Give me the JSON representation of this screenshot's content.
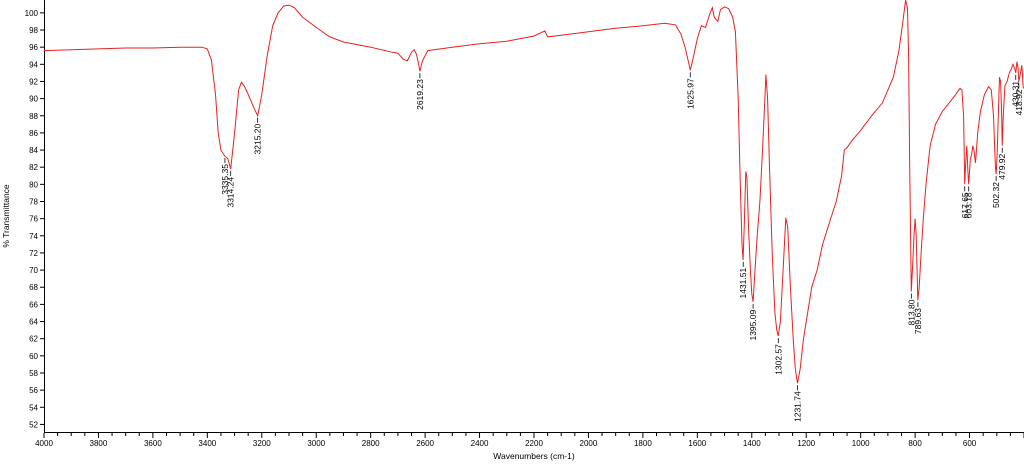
{
  "chart_data": {
    "type": "line",
    "title": "",
    "xlabel": "Wavenumbers (cm-1)",
    "ylabel": "% Transmittance",
    "xlim": [
      4000,
      400
    ],
    "ylim": [
      51,
      101.5
    ],
    "x_reversed": true,
    "grid": false,
    "line_color": "#e8211f",
    "x_ticks": [
      "4000",
      "3800",
      "3600",
      "3400",
      "3200",
      "3000",
      "2800",
      "2600",
      "2400",
      "2200",
      "2000",
      "1800",
      "1600",
      "1400",
      "1200",
      "1000",
      "800",
      "600"
    ],
    "y_ticks": [
      "52",
      "54",
      "56",
      "58",
      "60",
      "62",
      "64",
      "66",
      "68",
      "70",
      "72",
      "74",
      "76",
      "78",
      "80",
      "82",
      "84",
      "86",
      "88",
      "90",
      "92",
      "94",
      "96",
      "98",
      "100"
    ],
    "series": [
      {
        "points": [
          [
            4000,
            95.6
          ],
          [
            3900,
            95.7
          ],
          [
            3800,
            95.8
          ],
          [
            3700,
            95.9
          ],
          [
            3600,
            95.9
          ],
          [
            3500,
            96.0
          ],
          [
            3420,
            96.0
          ],
          [
            3400,
            95.8
          ],
          [
            3385,
            94.5
          ],
          [
            3370,
            90.5
          ],
          [
            3360,
            86.0
          ],
          [
            3350,
            84.0
          ],
          [
            3336,
            83.3
          ],
          [
            3325,
            83.0
          ],
          [
            3314,
            81.8
          ],
          [
            3300,
            86.0
          ],
          [
            3285,
            91.0
          ],
          [
            3275,
            91.9
          ],
          [
            3265,
            91.5
          ],
          [
            3250,
            90.5
          ],
          [
            3230,
            89.0
          ],
          [
            3215,
            88.0
          ],
          [
            3200,
            90.5
          ],
          [
            3180,
            95.0
          ],
          [
            3160,
            98.5
          ],
          [
            3140,
            100.0
          ],
          [
            3120,
            100.8
          ],
          [
            3100,
            100.9
          ],
          [
            3080,
            100.6
          ],
          [
            3050,
            99.5
          ],
          [
            3000,
            98.3
          ],
          [
            2950,
            97.2
          ],
          [
            2900,
            96.6
          ],
          [
            2800,
            96.0
          ],
          [
            2720,
            95.4
          ],
          [
            2700,
            95.3
          ],
          [
            2680,
            94.6
          ],
          [
            2665,
            94.4
          ],
          [
            2650,
            95.4
          ],
          [
            2640,
            95.7
          ],
          [
            2632,
            95.2
          ],
          [
            2625,
            94.2
          ],
          [
            2619,
            93.2
          ],
          [
            2610,
            94.4
          ],
          [
            2590,
            95.6
          ],
          [
            2500,
            96.0
          ],
          [
            2400,
            96.4
          ],
          [
            2300,
            96.7
          ],
          [
            2250,
            97.0
          ],
          [
            2200,
            97.3
          ],
          [
            2180,
            97.6
          ],
          [
            2160,
            97.9
          ],
          [
            2150,
            97.2
          ],
          [
            2100,
            97.4
          ],
          [
            2000,
            97.8
          ],
          [
            1900,
            98.2
          ],
          [
            1800,
            98.5
          ],
          [
            1720,
            98.8
          ],
          [
            1680,
            98.6
          ],
          [
            1660,
            97.5
          ],
          [
            1645,
            96.0
          ],
          [
            1632,
            94.2
          ],
          [
            1626,
            93.3
          ],
          [
            1615,
            94.8
          ],
          [
            1600,
            97.0
          ],
          [
            1585,
            98.5
          ],
          [
            1570,
            98.3
          ],
          [
            1555,
            99.8
          ],
          [
            1545,
            100.6
          ],
          [
            1538,
            99.5
          ],
          [
            1525,
            99.0
          ],
          [
            1515,
            100.4
          ],
          [
            1500,
            100.7
          ],
          [
            1485,
            100.5
          ],
          [
            1470,
            99.5
          ],
          [
            1460,
            97.8
          ],
          [
            1450,
            90.0
          ],
          [
            1442,
            80.0
          ],
          [
            1436,
            73.0
          ],
          [
            1432,
            71.2
          ],
          [
            1428,
            75.0
          ],
          [
            1422,
            81.5
          ],
          [
            1418,
            80.8
          ],
          [
            1412,
            75.0
          ],
          [
            1405,
            70.0
          ],
          [
            1400,
            67.2
          ],
          [
            1395,
            66.3
          ],
          [
            1388,
            70.0
          ],
          [
            1380,
            74.0
          ],
          [
            1370,
            78.0
          ],
          [
            1362,
            83.0
          ],
          [
            1354,
            88.5
          ],
          [
            1348,
            92.8
          ],
          [
            1342,
            90.0
          ],
          [
            1335,
            82.0
          ],
          [
            1325,
            72.0
          ],
          [
            1315,
            65.0
          ],
          [
            1308,
            63.0
          ],
          [
            1303,
            62.3
          ],
          [
            1295,
            64.0
          ],
          [
            1285,
            70.0
          ],
          [
            1275,
            76.1
          ],
          [
            1268,
            75.0
          ],
          [
            1258,
            68.0
          ],
          [
            1248,
            62.0
          ],
          [
            1240,
            58.5
          ],
          [
            1232,
            56.8
          ],
          [
            1222,
            58.5
          ],
          [
            1210,
            62.0
          ],
          [
            1195,
            65.0
          ],
          [
            1180,
            68.0
          ],
          [
            1160,
            70.0
          ],
          [
            1140,
            73.0
          ],
          [
            1110,
            76.0
          ],
          [
            1090,
            78.0
          ],
          [
            1070,
            81.0
          ],
          [
            1060,
            84.0
          ],
          [
            1050,
            84.3
          ],
          [
            1030,
            85.2
          ],
          [
            1000,
            86.3
          ],
          [
            960,
            88.0
          ],
          [
            920,
            89.5
          ],
          [
            880,
            92.5
          ],
          [
            860,
            95.5
          ],
          [
            845,
            99.0
          ],
          [
            835,
            101.5
          ],
          [
            828,
            100.5
          ],
          [
            824,
            95.0
          ],
          [
            820,
            82.0
          ],
          [
            816,
            72.0
          ],
          [
            814,
            67.5
          ],
          [
            810,
            70.0
          ],
          [
            804,
            74.0
          ],
          [
            800,
            76.0
          ],
          [
            796,
            74.0
          ],
          [
            790,
            66.5
          ],
          [
            785,
            68.0
          ],
          [
            778,
            72.0
          ],
          [
            770,
            76.0
          ],
          [
            760,
            80.0
          ],
          [
            745,
            84.5
          ],
          [
            725,
            87.0
          ],
          [
            700,
            88.5
          ],
          [
            675,
            89.5
          ],
          [
            650,
            90.5
          ],
          [
            635,
            91.2
          ],
          [
            628,
            91.0
          ],
          [
            622,
            88.0
          ],
          [
            618,
            80.0
          ],
          [
            614,
            82.5
          ],
          [
            610,
            84.5
          ],
          [
            606,
            81.5
          ],
          [
            603,
            80.0
          ],
          [
            597,
            83.0
          ],
          [
            592,
            83.5
          ],
          [
            588,
            84.5
          ],
          [
            584,
            84.0
          ],
          [
            578,
            82.5
          ],
          [
            570,
            86.0
          ],
          [
            560,
            88.5
          ],
          [
            545,
            90.5
          ],
          [
            530,
            91.4
          ],
          [
            520,
            91.0
          ],
          [
            512,
            88.0
          ],
          [
            505,
            82.0
          ],
          [
            502,
            81.2
          ],
          [
            498,
            84.0
          ],
          [
            494,
            88.5
          ],
          [
            490,
            92.5
          ],
          [
            486,
            92.0
          ],
          [
            482,
            88.0
          ],
          [
            480,
            84.5
          ],
          [
            476,
            88.0
          ],
          [
            470,
            91.5
          ],
          [
            462,
            92.0
          ],
          [
            454,
            93.0
          ],
          [
            446,
            93.5
          ],
          [
            440,
            94.0
          ],
          [
            434,
            93.5
          ],
          [
            430,
            93.0
          ],
          [
            426,
            94.3
          ],
          [
            422,
            93.7
          ],
          [
            419,
            92.0
          ],
          [
            414,
            92.8
          ],
          [
            408,
            93.9
          ],
          [
            403,
            91.3
          ],
          [
            400,
            91.2
          ]
        ]
      }
    ],
    "peak_labels": [
      {
        "text": "3335.35",
        "x": 3335.35,
        "y": 83.3
      },
      {
        "text": "3314.24",
        "x": 3314.24,
        "y": 81.8
      },
      {
        "text": "3215.20",
        "x": 3215.2,
        "y": 88.0
      },
      {
        "text": "2619.23",
        "x": 2619.23,
        "y": 93.2
      },
      {
        "text": "1625.97",
        "x": 1625.97,
        "y": 93.3
      },
      {
        "text": "1431.51",
        "x": 1431.51,
        "y": 71.2
      },
      {
        "text": "1395.09",
        "x": 1395.09,
        "y": 66.3
      },
      {
        "text": "1302.57",
        "x": 1302.57,
        "y": 62.3
      },
      {
        "text": "1231.74",
        "x": 1231.74,
        "y": 56.8
      },
      {
        "text": "813.80",
        "x": 813.8,
        "y": 67.5
      },
      {
        "text": "789.63",
        "x": 789.63,
        "y": 66.5
      },
      {
        "text": "617.65",
        "x": 617.65,
        "y": 80.0
      },
      {
        "text": "603.18",
        "x": 603.18,
        "y": 80.0
      },
      {
        "text": "502.32",
        "x": 502.32,
        "y": 81.2
      },
      {
        "text": "479.92",
        "x": 479.92,
        "y": 84.5
      },
      {
        "text": "430.31",
        "x": 430.31,
        "y": 93.0
      },
      {
        "text": "418.92",
        "x": 418.92,
        "y": 92.0
      }
    ]
  }
}
